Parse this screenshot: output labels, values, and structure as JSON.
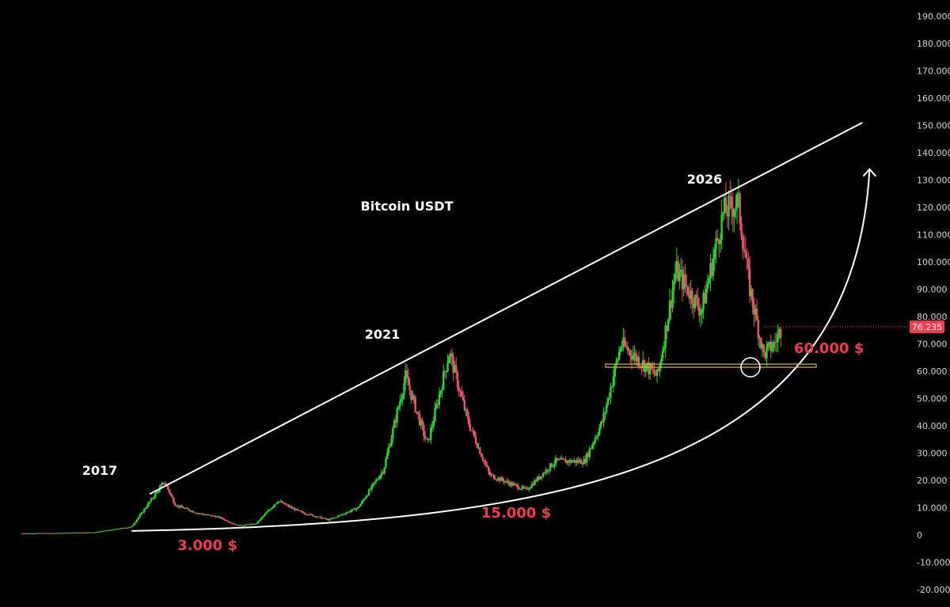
{
  "chart_data": {
    "type": "candlestick",
    "title": "Bitcoin USDT",
    "y_axis": {
      "position": "right",
      "ticks": [
        "190.000",
        "180.000",
        "170.000",
        "160.000",
        "150.000",
        "140.000",
        "130.000",
        "120.000",
        "110.000",
        "100.000",
        "90.000",
        "80.000",
        "70.000",
        "60.000",
        "50.000",
        "40.000",
        "30.000",
        "20.000",
        "10.000",
        "0",
        "-10.000",
        "-20.000"
      ],
      "tick_values": [
        190000,
        180000,
        170000,
        160000,
        150000,
        140000,
        130000,
        120000,
        110000,
        100000,
        90000,
        80000,
        70000,
        60000,
        50000,
        40000,
        30000,
        20000,
        10000,
        0,
        -10000,
        -20000
      ],
      "range": [
        -20000,
        190000
      ]
    },
    "last_price": {
      "label": "76.235",
      "value": 76235,
      "color": "#ef3b4b"
    },
    "price_path": [
      [
        2016.0,
        600
      ],
      [
        2016.5,
        700
      ],
      [
        2017.0,
        1000
      ],
      [
        2017.5,
        3000
      ],
      [
        2017.95,
        19500
      ],
      [
        2018.1,
        11000
      ],
      [
        2018.4,
        8000
      ],
      [
        2018.7,
        6500
      ],
      [
        2018.95,
        3500
      ],
      [
        2019.2,
        4000
      ],
      [
        2019.5,
        12500
      ],
      [
        2019.8,
        8500
      ],
      [
        2020.2,
        5500
      ],
      [
        2020.6,
        10000
      ],
      [
        2020.95,
        24000
      ],
      [
        2021.25,
        58000
      ],
      [
        2021.55,
        33000
      ],
      [
        2021.85,
        67000
      ],
      [
        2022.1,
        42000
      ],
      [
        2022.4,
        22000
      ],
      [
        2022.9,
        16500
      ],
      [
        2023.3,
        27000
      ],
      [
        2023.7,
        27000
      ],
      [
        2023.95,
        42000
      ],
      [
        2024.2,
        70000
      ],
      [
        2024.7,
        58000
      ],
      [
        2024.95,
        97000
      ],
      [
        2025.3,
        82000
      ],
      [
        2025.6,
        118000
      ],
      [
        2025.8,
        122000
      ],
      [
        2025.95,
        92000
      ],
      [
        2026.15,
        66000
      ],
      [
        2026.3,
        70000
      ],
      [
        2026.4,
        76235
      ]
    ],
    "support_level": {
      "value": 62000,
      "color": "#d4b83a"
    },
    "trendlines": [
      {
        "type": "resistance",
        "from": [
          2017.75,
          15000
        ],
        "to": [
          2027.5,
          151000
        ]
      },
      {
        "type": "support-curve",
        "from": [
          2017.5,
          1500
        ],
        "to": [
          2027.6,
          134000
        ]
      }
    ],
    "annotations": {
      "peaks": [
        {
          "label": "2017",
          "x": 2017.95,
          "y": 19500
        },
        {
          "label": "2021",
          "x": 2021.85,
          "y": 67000
        },
        {
          "label": "2026",
          "x": 2025.8,
          "y": 126000
        }
      ],
      "levels": [
        {
          "label": "3.000 $",
          "x": 2019.0,
          "y": 3000
        },
        {
          "label": "15.000 $",
          "x": 2022.9,
          "y": 15000
        },
        {
          "label": "60.000 $",
          "x": 2026.3,
          "y": 62000
        }
      ]
    },
    "colors": {
      "background": "#000000",
      "up": "#26d62f",
      "down": "#e8566a",
      "trendline": "#ffffff",
      "label_red": "#ef3b4b"
    },
    "grid": false
  }
}
